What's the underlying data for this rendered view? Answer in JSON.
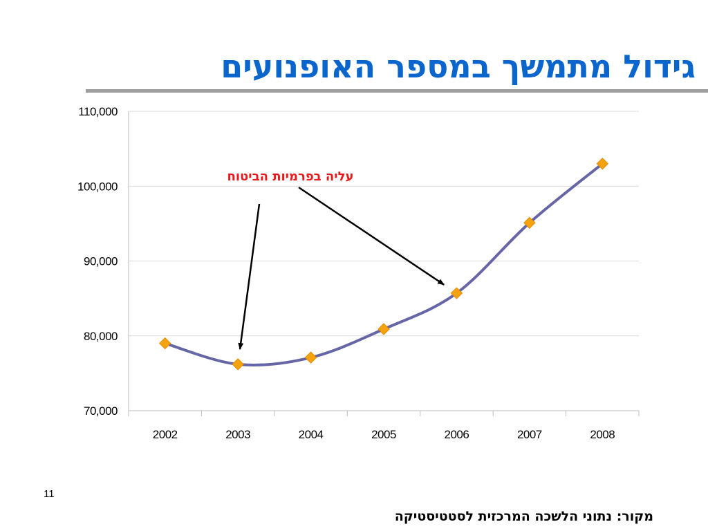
{
  "slide": {
    "title": "גידול מתמשך במספר האופנועים",
    "number": "11",
    "source": "מקור: נתוני הלשכה המרכזית לסטטיסטיקה"
  },
  "chart_data": {
    "type": "line",
    "categories": [
      "2002",
      "2003",
      "2004",
      "2005",
      "2006",
      "2007",
      "2008"
    ],
    "series": [
      {
        "values": [
          79000,
          76200,
          77100,
          80900,
          85700,
          95100,
          103000
        ]
      }
    ],
    "ylim": [
      70000,
      110000
    ],
    "yticks": [
      70000,
      80000,
      90000,
      100000,
      110000
    ],
    "ytick_labels": [
      "70,000",
      "80,000",
      "90,000",
      "100,000",
      "110,000"
    ],
    "grid": true,
    "annotation": {
      "text": "עליה בפרמיות הביטוח",
      "color": "#e8191b",
      "targets": [
        "2003",
        "2006"
      ]
    },
    "colors": {
      "line": "#6666a6",
      "marker": "#f5a20f",
      "grid": "#d9d9d9",
      "arrow": "#000000"
    }
  }
}
